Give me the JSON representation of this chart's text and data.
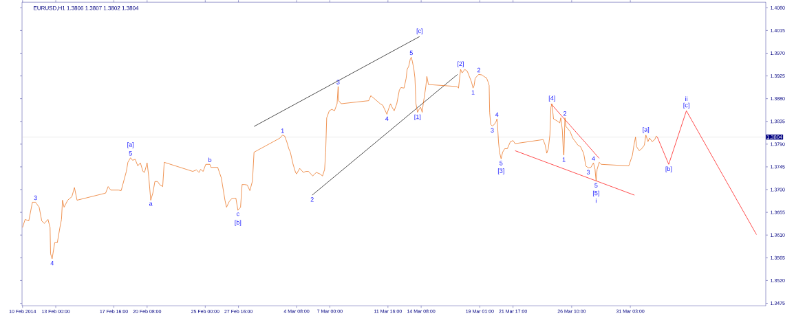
{
  "chart_data": {
    "type": "line",
    "title": "EURUSD,H1  1.3806 1.3807 1.3802 1.3804",
    "xlim": [
      "2014-02-10T07:00",
      "2014-04-11T00:00"
    ],
    "ylim": [
      1.347,
      1.4071
    ],
    "xticks": [
      {
        "value": "2014-02-10T08:00",
        "label": "10 Feb 2014"
      },
      {
        "value": "2014-02-13T00:00",
        "label": "13 Feb 00:00"
      },
      {
        "value": "2014-02-17T16:00",
        "label": "17 Feb 16:00"
      },
      {
        "value": "2014-02-20T08:00",
        "label": "20 Feb 08:00"
      },
      {
        "value": "2014-02-25T00:00",
        "label": "25 Feb 00:00"
      },
      {
        "value": "2014-02-27T16:00",
        "label": "27 Feb 16:00"
      },
      {
        "value": "2014-03-04T08:00",
        "label": "4 Mar 08:00"
      },
      {
        "value": "2014-03-07T00:00",
        "label": "7 Mar 00:00"
      },
      {
        "value": "2014-03-11T16:00",
        "label": "11 Mar 16:00"
      },
      {
        "value": "2014-03-14T08:00",
        "label": "14 Mar 08:00"
      },
      {
        "value": "2014-03-19T01:00",
        "label": "19 Mar 01:00"
      },
      {
        "value": "2014-03-21T17:00",
        "label": "21 Mar 17:00"
      },
      {
        "value": "2014-03-26T10:00",
        "label": "26 Mar 10:00"
      },
      {
        "value": "2014-03-31T03:00",
        "label": "31 Mar 03:00"
      }
    ],
    "yticks": [
      {
        "value": 1.3475,
        "label": "1.3475"
      },
      {
        "value": 1.352,
        "label": "1.3520"
      },
      {
        "value": 1.3565,
        "label": "1.3565"
      },
      {
        "value": 1.361,
        "label": "1.3610"
      },
      {
        "value": 1.3655,
        "label": "1.3655"
      },
      {
        "value": 1.37,
        "label": "1.3700"
      },
      {
        "value": 1.3745,
        "label": "1.3745"
      },
      {
        "value": 1.379,
        "label": "1.3790"
      },
      {
        "value": 1.3835,
        "label": "1.3835"
      },
      {
        "value": 1.388,
        "label": "1.3880"
      },
      {
        "value": 1.3925,
        "label": "1.3925"
      },
      {
        "value": 1.397,
        "label": "1.3970"
      },
      {
        "value": 1.4015,
        "label": "1.4015"
      },
      {
        "value": 1.406,
        "label": "1.4060"
      }
    ],
    "series": [
      {
        "color": "#e8650c",
        "x": [
          "2014-02-10T08:00",
          "2014-02-10T13:00",
          "2014-02-10T20:00",
          "2014-02-11T03:00",
          "2014-02-11T09:00",
          "2014-02-11T16:00",
          "2014-02-11T21:00",
          "2014-02-12T02:00",
          "2014-02-12T09:00",
          "2014-02-12T13:00",
          "2014-02-12T14:00",
          "2014-02-12T17:00",
          "2014-02-12T22:00",
          "2014-02-13T03:00",
          "2014-02-13T08:00",
          "2014-02-13T11:00",
          "2014-02-13T13:00",
          "2014-02-13T16:00",
          "2014-02-13T23:00",
          "2014-02-14T07:00",
          "2014-02-14T12:00",
          "2014-02-14T17:00",
          "2014-02-17T00:00",
          "2014-02-17T05:00",
          "2014-02-17T10:00",
          "2014-02-17T18:00",
          "2014-02-18T01:00",
          "2014-02-18T06:00",
          "2014-02-18T11:00",
          "2014-02-18T16:00",
          "2014-02-18T19:00",
          "2014-02-19T00:00",
          "2014-02-19T04:00",
          "2014-02-19T09:00",
          "2014-02-19T14:00",
          "2014-02-19T19:00",
          "2014-02-20T00:00",
          "2014-02-20T03:00",
          "2014-02-20T08:00",
          "2014-02-20T11:00",
          "2014-02-20T15:00",
          "2014-02-20T19:00",
          "2014-02-20T23:00",
          "2014-02-21T04:00",
          "2014-02-21T09:00",
          "2014-02-21T14:00",
          "2014-02-21T17:00",
          "2014-02-24T00:00",
          "2014-02-24T07:00",
          "2014-02-24T12:00",
          "2014-02-24T15:00",
          "2014-02-24T20:00",
          "2014-02-25T01:00",
          "2014-02-25T09:00",
          "2014-02-25T11:00",
          "2014-02-25T19:00",
          "2014-02-26T00:00",
          "2014-02-26T07:00",
          "2014-02-26T14:00",
          "2014-02-26T17:00",
          "2014-02-26T22:00",
          "2014-02-27T03:00",
          "2014-02-27T11:00",
          "2014-02-27T15:00",
          "2014-02-27T20:00",
          "2014-02-27T23:00",
          "2014-02-28T04:00",
          "2014-02-28T09:00",
          "2014-02-28T14:00",
          "2014-02-28T19:00",
          "2014-02-28T22:00",
          "2014-03-03T00:00",
          "2014-03-03T05:00",
          "2014-03-03T09:00",
          "2014-03-03T13:00",
          "2014-03-03T17:00",
          "2014-03-03T20:00",
          "2014-03-04T01:00",
          "2014-03-04T06:00",
          "2014-03-04T08:00",
          "2014-03-04T14:00",
          "2014-03-04T21:00",
          "2014-03-05T02:00",
          "2014-03-05T07:00",
          "2014-03-05T15:00",
          "2014-03-05T22:00",
          "2014-03-06T05:00",
          "2014-03-06T10:00",
          "2014-03-06T14:00",
          "2014-03-06T16:00",
          "2014-03-06T18:00",
          "2014-03-06T23:00",
          "2014-03-07T04:00",
          "2014-03-07T09:00",
          "2014-03-07T14:00",
          "2014-03-07T16:00",
          "2014-03-07T17:00",
          "2014-03-07T22:00",
          "2014-03-10T03:00",
          "2014-03-10T07:00",
          "2014-03-10T15:00",
          "2014-03-11T01:00",
          "2014-03-11T06:00",
          "2014-03-11T11:00",
          "2014-03-11T14:00",
          "2014-03-11T17:00",
          "2014-03-11T21:00",
          "2014-03-12T00:00",
          "2014-03-12T04:00",
          "2014-03-12T09:00",
          "2014-03-12T14:00",
          "2014-03-12T17:00",
          "2014-03-12T23:00",
          "2014-03-13T03:00",
          "2014-03-13T05:00",
          "2014-03-13T08:00",
          "2014-03-13T11:00",
          "2014-03-13T13:00",
          "2014-03-13T15:00",
          "2014-03-13T18:00",
          "2014-03-13T20:00",
          "2014-03-13T22:00",
          "2014-03-14T01:00",
          "2014-03-14T04:00",
          "2014-03-14T07:00",
          "2014-03-14T10:00",
          "2014-03-14T12:00",
          "2014-03-14T14:00",
          "2014-03-14T17:00",
          "2014-03-14T19:00",
          "2014-03-14T22:00",
          "2014-03-17T05:00",
          "2014-03-17T08:00",
          "2014-03-17T10:00",
          "2014-03-17T12:00",
          "2014-03-17T15:00",
          "2014-03-17T20:00",
          "2014-03-18T01:00",
          "2014-03-18T06:00",
          "2014-03-18T09:00",
          "2014-03-18T12:00",
          "2014-03-18T14:00",
          "2014-03-18T16:00",
          "2014-03-18T19:00",
          "2014-03-18T23:00",
          "2014-03-19T05:00",
          "2014-03-19T09:00",
          "2014-03-19T14:00",
          "2014-03-19T17:00",
          "2014-03-19T19:00",
          "2014-03-19T20:00",
          "2014-03-19T22:00",
          "2014-03-20T01:00",
          "2014-03-20T05:00",
          "2014-03-20T09:00",
          "2014-03-20T10:00",
          "2014-03-20T11:00",
          "2014-03-20T13:00",
          "2014-03-20T15:00",
          "2014-03-20T18:00",
          "2014-03-20T21:00",
          "2014-03-21T01:00",
          "2014-03-21T06:00",
          "2014-03-21T09:00",
          "2014-03-21T12:00",
          "2014-03-21T17:00",
          "2014-03-21T21:00",
          "2014-03-24T03:00",
          "2014-03-24T07:00",
          "2014-03-24T10:00",
          "2014-03-24T13:00",
          "2014-03-24T16:00",
          "2014-03-24T18:00",
          "2014-03-24T20:00",
          "2014-03-24T23:00",
          "2014-03-25T06:00",
          "2014-03-25T11:00",
          "2014-03-25T13:00",
          "2014-03-25T16:00",
          "2014-03-25T18:00",
          "2014-03-25T19:00",
          "2014-03-25T21:00",
          "2014-03-25T23:00",
          "2014-03-26T07:00",
          "2014-03-26T12:00",
          "2014-03-26T17:00",
          "2014-03-26T22:00",
          "2014-03-27T03:00",
          "2014-03-27T09:00",
          "2014-03-27T11:00",
          "2014-03-27T13:00",
          "2014-03-27T18:00",
          "2014-03-27T23:00",
          "2014-03-28T04:00",
          "2014-03-28T07:00",
          "2014-03-28T09:00",
          "2014-03-28T11:00",
          "2014-03-28T15:00",
          "2014-03-28T19:00",
          "2014-03-31T00:00",
          "2014-03-31T07:00",
          "2014-03-31T10:00",
          "2014-03-31T13:00",
          "2014-03-31T15:00",
          "2014-03-31T20:00",
          "2014-04-01T01:00",
          "2014-04-01T06:00",
          "2014-04-01T09:00",
          "2014-04-01T13:00",
          "2014-04-01T16:00",
          "2014-04-01T21:00",
          "2014-04-02T02:00",
          "2014-04-02T05:00",
          "2014-04-02T07:00"
        ],
        "values": [
          1.3625,
          1.3641,
          1.3638,
          1.3675,
          1.3675,
          1.3665,
          1.3638,
          1.3633,
          1.3641,
          1.3625,
          1.3573,
          1.3563,
          1.3595,
          1.3595,
          1.3625,
          1.3641,
          1.3679,
          1.3665,
          1.3679,
          1.3686,
          1.3704,
          1.3679,
          1.3693,
          1.3706,
          1.3699,
          1.3699,
          1.3699,
          1.3698,
          1.3717,
          1.3736,
          1.3754,
          1.3763,
          1.3758,
          1.376,
          1.3747,
          1.3753,
          1.3736,
          1.3734,
          1.3753,
          1.3727,
          1.3679,
          1.3693,
          1.3716,
          1.3716,
          1.3709,
          1.3706,
          1.3754,
          1.3736,
          1.3739,
          1.3734,
          1.374,
          1.3736,
          1.375,
          1.375,
          1.3744,
          1.3744,
          1.3744,
          1.3723,
          1.3679,
          1.3665,
          1.3676,
          1.3682,
          1.3683,
          1.3659,
          1.3665,
          1.371,
          1.371,
          1.3709,
          1.3698,
          1.3717,
          1.3774,
          1.3802,
          1.3808,
          1.3806,
          1.3795,
          1.3781,
          1.3774,
          1.3751,
          1.3734,
          1.3731,
          1.3742,
          1.3734,
          1.3736,
          1.3736,
          1.3727,
          1.3734,
          1.3731,
          1.3727,
          1.374,
          1.3774,
          1.3842,
          1.3856,
          1.3859,
          1.3856,
          1.387,
          1.3904,
          1.3876,
          1.387,
          1.3876,
          1.3886,
          1.3879,
          1.387,
          1.3867,
          1.3856,
          1.3849,
          1.3859,
          1.387,
          1.3863,
          1.3856,
          1.387,
          1.3897,
          1.3902,
          1.3901,
          1.392,
          1.3938,
          1.3944,
          1.3958,
          1.3962,
          1.3954,
          1.3938,
          1.3921,
          1.387,
          1.3853,
          1.3859,
          1.3863,
          1.3853,
          1.387,
          1.3883,
          1.3904,
          1.3924,
          1.3908,
          1.3904,
          1.3901,
          1.392,
          1.3938,
          1.3931,
          1.3938,
          1.3934,
          1.3921,
          1.3913,
          1.3901,
          1.3906,
          1.392,
          1.3924,
          1.3928,
          1.3927,
          1.3924,
          1.3921,
          1.3913,
          1.3906,
          1.3853,
          1.3829,
          1.3826,
          1.3829,
          1.3836,
          1.384,
          1.3829,
          1.3795,
          1.3774,
          1.3761,
          1.3774,
          1.3781,
          1.3781,
          1.3788,
          1.3795,
          1.3797,
          1.3791,
          1.3799,
          1.3788,
          1.3772,
          1.3781,
          1.3808,
          1.3863,
          1.387,
          1.384,
          1.3836,
          1.3832,
          1.3842,
          1.3818,
          1.3774,
          1.3768,
          1.3842,
          1.3825,
          1.3815,
          1.3802,
          1.3795,
          1.3788,
          1.3785,
          1.3772,
          1.3761,
          1.3747,
          1.3743,
          1.3744,
          1.3753,
          1.374,
          1.3717,
          1.374,
          1.3754,
          1.375,
          1.3747,
          1.3768,
          1.3788,
          1.3804,
          1.3785,
          1.3777,
          1.3781,
          1.3788,
          1.3808,
          1.3795,
          1.3802,
          1.3795,
          1.3799,
          1.3806,
          1.3804
        ]
      },
      {
        "color": "#000000",
        "x": [
          "2014-02-28T22:00",
          "2014-03-14T05:00"
        ],
        "values": [
          1.3825,
          1.4003
        ]
      },
      {
        "color": "#000000",
        "x": [
          "2014-03-05T14:00",
          "2014-03-17T06:00"
        ],
        "values": [
          1.3689,
          1.3928
        ]
      },
      {
        "color": "#ff0000",
        "x": [
          "2014-03-24T18:00",
          "2014-03-28T15:00"
        ],
        "values": [
          1.387,
          1.3762
        ]
      },
      {
        "color": "#ff0000",
        "x": [
          "2014-03-21T21:00",
          "2014-03-31T11:00"
        ],
        "values": [
          1.3777,
          1.3689
        ]
      },
      {
        "color": "#ff0000",
        "x": [
          "2014-04-02T07:00",
          "2014-04-03T05:00",
          "2014-04-04T15:00",
          "2014-04-10T06:00"
        ],
        "values": [
          1.3804,
          1.375,
          1.3856,
          1.3611
        ]
      }
    ],
    "ref_lines": [
      {
        "axis": "y",
        "value": 1.3804,
        "label": "1.3804",
        "color": "#c8c8c8"
      }
    ],
    "annotations": [
      {
        "text": "3",
        "x": "2014-02-11T09:00",
        "y": 1.3675
      },
      {
        "text": "4",
        "x": "2014-02-12T17:00",
        "y": 1.3563
      },
      {
        "text": "5",
        "x": "2014-02-19T00:00",
        "y": 1.3763
      },
      {
        "text": "[a]",
        "x": "2014-02-19T00:00",
        "y": 1.3763
      },
      {
        "text": "a",
        "x": "2014-02-20T15:00",
        "y": 1.3679
      },
      {
        "text": "b",
        "x": "2014-02-25T09:00",
        "y": 1.375
      },
      {
        "text": "c",
        "x": "2014-02-27T15:00",
        "y": 1.3659
      },
      {
        "text": "[b]",
        "x": "2014-02-27T15:00",
        "y": 1.3659
      },
      {
        "text": "1",
        "x": "2014-03-03T05:00",
        "y": 1.3808
      },
      {
        "text": "2",
        "x": "2014-03-05T14:00",
        "y": 1.3689
      },
      {
        "text": "3",
        "x": "2014-03-07T16:00",
        "y": 1.3904
      },
      {
        "text": "4",
        "x": "2014-03-11T14:00",
        "y": 1.3849
      },
      {
        "text": "5",
        "x": "2014-03-13T13:00",
        "y": 1.3962
      },
      {
        "text": "[c]",
        "x": "2014-03-14T05:00",
        "y": 1.4003
      },
      {
        "text": "[1]",
        "x": "2014-03-14T01:00",
        "y": 1.3853
      },
      {
        "text": "[2]",
        "x": "2014-03-17T12:00",
        "y": 1.3938
      },
      {
        "text": "1",
        "x": "2014-03-18T12:00",
        "y": 1.3901
      },
      {
        "text": "2",
        "x": "2014-03-18T23:00",
        "y": 1.3928
      },
      {
        "text": "3",
        "x": "2014-03-20T01:00",
        "y": 1.3826
      },
      {
        "text": "4",
        "x": "2014-03-20T10:00",
        "y": 1.384
      },
      {
        "text": "5",
        "x": "2014-03-20T18:00",
        "y": 1.3761
      },
      {
        "text": "[3]",
        "x": "2014-03-20T18:00",
        "y": 1.3761
      },
      {
        "text": "[4]",
        "x": "2014-03-24T20:00",
        "y": 1.387
      },
      {
        "text": "1",
        "x": "2014-03-25T19:00",
        "y": 1.3768
      },
      {
        "text": "2",
        "x": "2014-03-25T21:00",
        "y": 1.3842
      },
      {
        "text": "3",
        "x": "2014-03-27T18:00",
        "y": 1.3743
      },
      {
        "text": "4",
        "x": "2014-03-28T04:00",
        "y": 1.3753
      },
      {
        "text": "5",
        "x": "2014-03-28T09:00",
        "y": 1.3717
      },
      {
        "text": "[5]",
        "x": "2014-03-28T09:00",
        "y": 1.3717
      },
      {
        "text": "i",
        "x": "2014-03-28T09:00",
        "y": 1.3717
      },
      {
        "text": "[a]",
        "x": "2014-04-01T09:00",
        "y": 1.3808
      },
      {
        "text": "[b]",
        "x": "2014-04-03T05:00",
        "y": 1.375
      },
      {
        "text": "[c]",
        "x": "2014-04-04T15:00",
        "y": 1.3856
      },
      {
        "text": "ii",
        "x": "2014-04-04T15:00",
        "y": 1.3856
      }
    ]
  }
}
